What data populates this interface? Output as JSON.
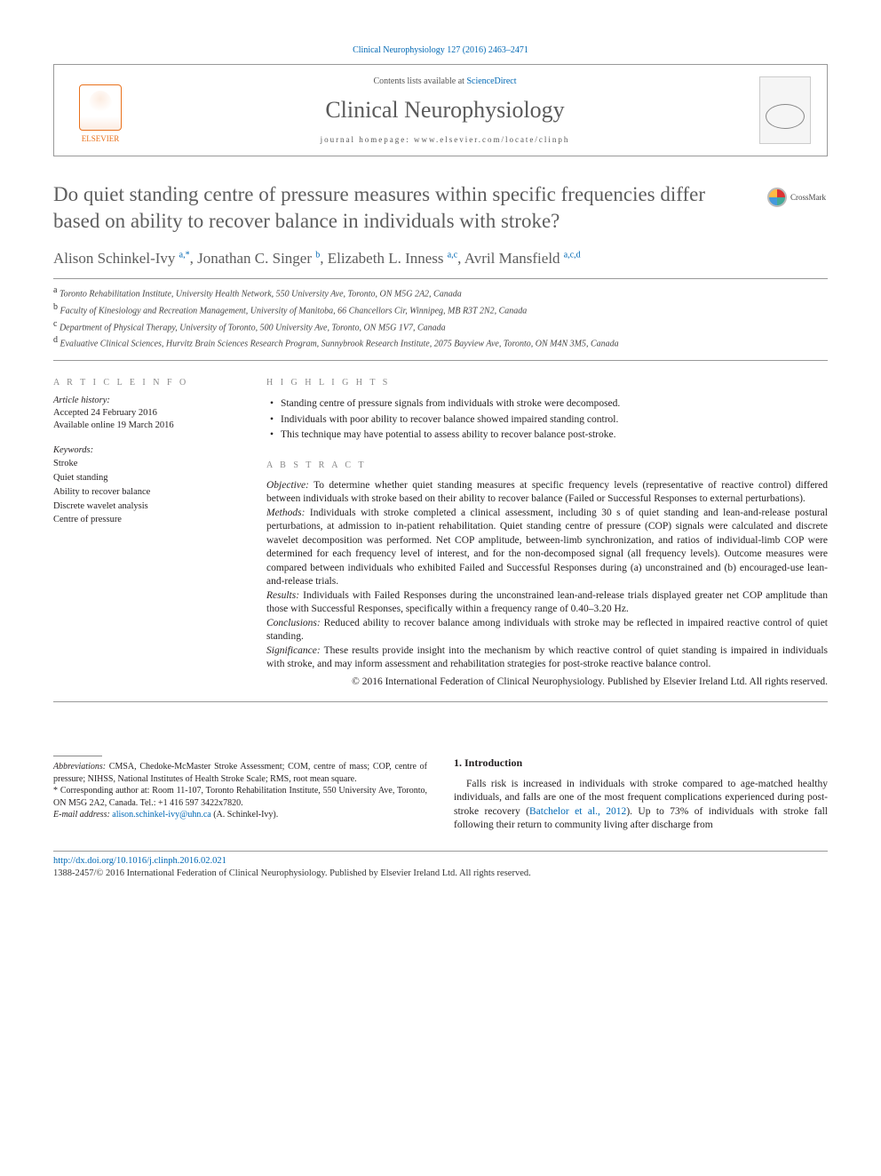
{
  "citation": "Clinical Neurophysiology 127 (2016) 2463–2471",
  "header": {
    "contents_pre": "Contents lists available at ",
    "sciencedirect": "ScienceDirect",
    "journal": "Clinical Neurophysiology",
    "homepage_pre": "journal homepage: ",
    "homepage": "www.elsevier.com/locate/clinph",
    "elsevier": "ELSEVIER"
  },
  "crossmark": "CrossMark",
  "title": "Do quiet standing centre of pressure measures within specific frequencies differ based on ability to recover balance in individuals with stroke?",
  "authors": [
    {
      "name": "Alison Schinkel-Ivy",
      "marks": "a,*"
    },
    {
      "name": "Jonathan C. Singer",
      "marks": "b"
    },
    {
      "name": "Elizabeth L. Inness",
      "marks": "a,c"
    },
    {
      "name": "Avril Mansfield",
      "marks": "a,c,d"
    }
  ],
  "affiliations": [
    {
      "mark": "a",
      "text": "Toronto Rehabilitation Institute, University Health Network, 550 University Ave, Toronto, ON M5G 2A2, Canada"
    },
    {
      "mark": "b",
      "text": "Faculty of Kinesiology and Recreation Management, University of Manitoba, 66 Chancellors Cir, Winnipeg, MB R3T 2N2, Canada"
    },
    {
      "mark": "c",
      "text": "Department of Physical Therapy, University of Toronto, 500 University Ave, Toronto, ON M5G 1V7, Canada"
    },
    {
      "mark": "d",
      "text": "Evaluative Clinical Sciences, Hurvitz Brain Sciences Research Program, Sunnybrook Research Institute, 2075 Bayview Ave, Toronto, ON M4N 3M5, Canada"
    }
  ],
  "article_info": {
    "heading": "A R T I C L E   I N F O",
    "history_label": "Article history:",
    "accepted": "Accepted 24 February 2016",
    "online": "Available online 19 March 2016",
    "keywords_label": "Keywords:",
    "keywords": [
      "Stroke",
      "Quiet standing",
      "Ability to recover balance",
      "Discrete wavelet analysis",
      "Centre of pressure"
    ]
  },
  "highlights": {
    "heading": "H I G H L I G H T S",
    "items": [
      "Standing centre of pressure signals from individuals with stroke were decomposed.",
      "Individuals with poor ability to recover balance showed impaired standing control.",
      "This technique may have potential to assess ability to recover balance post-stroke."
    ]
  },
  "abstract": {
    "heading": "A B S T R A C T",
    "objective_label": "Objective:",
    "objective": " To determine whether quiet standing measures at specific frequency levels (representative of reactive control) differed between individuals with stroke based on their ability to recover balance (Failed or Successful Responses to external perturbations).",
    "methods_label": "Methods:",
    "methods": " Individuals with stroke completed a clinical assessment, including 30 s of quiet standing and lean-and-release postural perturbations, at admission to in-patient rehabilitation. Quiet standing centre of pressure (COP) signals were calculated and discrete wavelet decomposition was performed. Net COP amplitude, between-limb synchronization, and ratios of individual-limb COP were determined for each frequency level of interest, and for the non-decomposed signal (all frequency levels). Outcome measures were compared between individuals who exhibited Failed and Successful Responses during (a) unconstrained and (b) encouraged-use lean-and-release trials.",
    "results_label": "Results:",
    "results": " Individuals with Failed Responses during the unconstrained lean-and-release trials displayed greater net COP amplitude than those with Successful Responses, specifically within a frequency range of 0.40–3.20 Hz.",
    "conclusions_label": "Conclusions:",
    "conclusions": " Reduced ability to recover balance among individuals with stroke may be reflected in impaired reactive control of quiet standing.",
    "significance_label": "Significance:",
    "significance": " These results provide insight into the mechanism by which reactive control of quiet standing is impaired in individuals with stroke, and may inform assessment and rehabilitation strategies for post-stroke reactive balance control.",
    "copyright": "© 2016 International Federation of Clinical Neurophysiology. Published by Elsevier Ireland Ltd. All rights reserved."
  },
  "footnotes": {
    "abbrev_label": "Abbreviations:",
    "abbrev": " CMSA, Chedoke-McMaster Stroke Assessment; COM, centre of mass; COP, centre of pressure; NIHSS, National Institutes of Health Stroke Scale; RMS, root mean square.",
    "corr_mark": "*",
    "corr": " Corresponding author at: Room 11-107, Toronto Rehabilitation Institute, 550 University Ave, Toronto, ON M5G 2A2, Canada. Tel.: +1 416 597 3422x7820.",
    "email_label": "E-mail address:",
    "email": " alison.schinkel-ivy@uhn.ca",
    "email_suffix": " (A. Schinkel-Ivy)."
  },
  "intro": {
    "heading": "1. Introduction",
    "p1a": "Falls risk is increased in individuals with stroke compared to age-matched healthy individuals, and falls are one of the most frequent complications experienced during post-stroke recovery (",
    "cite": "Batchelor et al., 2012",
    "p1b": "). Up to 73% of individuals with stroke fall following their return to community living after discharge from"
  },
  "bottom": {
    "doi": "http://dx.doi.org/10.1016/j.clinph.2016.02.021",
    "issn": "1388-2457/© 2016 International Federation of Clinical Neurophysiology. Published by Elsevier Ireland Ltd. All rights reserved."
  }
}
